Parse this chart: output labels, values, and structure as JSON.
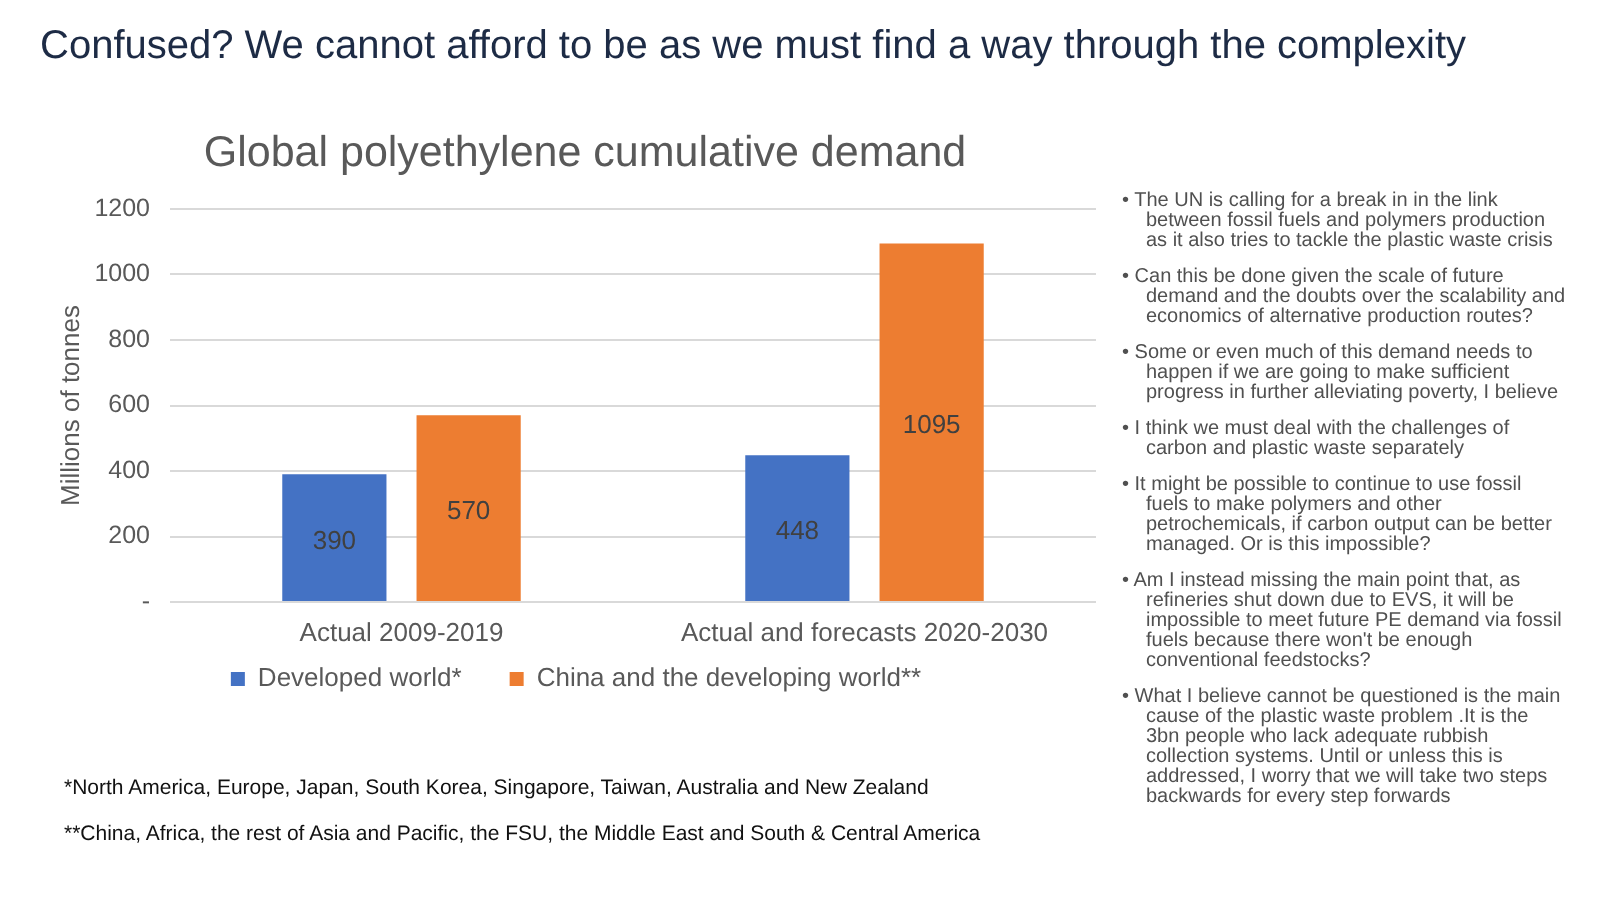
{
  "chart_data": {
    "type": "bar",
    "title": "Confused? We cannot afford to be as we must find a way through the complexity",
    "subtitle": "Global polyethylene cumulative demand",
    "ylabel": "Millions of tonnes",
    "categories": [
      "Actual 2009-2019",
      "Actual and forecasts 2020-2030"
    ],
    "series": [
      {
        "name": "Developed world*",
        "color": "#4472c4",
        "values": [
          390,
          448
        ]
      },
      {
        "name": "China and the developing world**",
        "color": "#ed7d31",
        "values": [
          570,
          1095
        ]
      }
    ],
    "ylim": [
      0,
      1200
    ],
    "yticks": [
      {
        "value": 0,
        "label": "-"
      },
      200,
      400,
      600,
      800,
      1000,
      1200
    ],
    "grid": "y",
    "legend": "bottom",
    "data_labels": true,
    "annotations": [
      "*North America, Europe, Japan, South Korea, Singapore, Taiwan, Australia and New Zealand",
      "**China, Africa, the rest of Asia and Pacific, the FSU, the Middle East and South & Central America",
      "• The UN is calling for a break in in the link between fossil fuels and polymers production as it also tries to tackle the plastic waste crisis",
      "• Can this be done given the scale of future demand and the doubts over the scalability and economics of alternative production routes?",
      "• Some or even much of this demand needs to happen if we are going to make sufficient progress in further alleviating poverty, I believe",
      "• I think we must deal with the challenges of carbon and plastic waste separately",
      "• It might be possible to continue to use fossil fuels to make polymers and other petrochemicals, if carbon output can be better managed. Or is this impossible?",
      "• Am I instead missing the main point that, as refineries shut down due to EVS, it will be impossible to meet future PE demand via fossil fuels because there won't be enough conventional feedstocks?",
      "• What I believe cannot be questioned is the main cause of the plastic waste problem .It is the 3bn people who lack adequate rubbish collection systems. Until or unless this is addressed, I worry that we will take two steps backwards for every step forwards"
    ]
  }
}
